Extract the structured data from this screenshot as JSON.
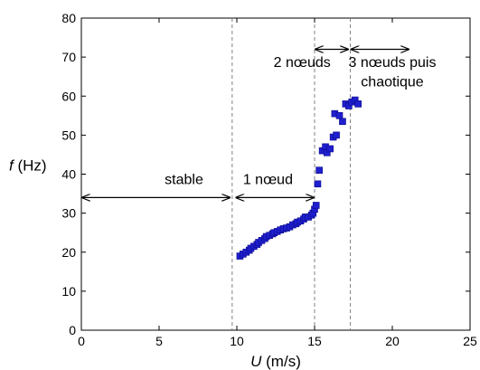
{
  "chart_data": {
    "type": "scatter",
    "xlabel": {
      "var": "U",
      "unit": " (m/s)"
    },
    "ylabel": {
      "var": "f",
      "unit": " (Hz)"
    },
    "xlim": [
      0,
      25
    ],
    "ylim": [
      0,
      80
    ],
    "xticks": [
      "0",
      "5",
      "10",
      "15",
      "20",
      "25"
    ],
    "yticks": [
      "0",
      "10",
      "20",
      "30",
      "40",
      "50",
      "60",
      "70",
      "80"
    ],
    "grid": false,
    "marker_color": "#1f1fcf",
    "series": [
      {
        "x": [
          10.2,
          10.4,
          10.6,
          10.8,
          10.9,
          11.1,
          11.3,
          11.4,
          11.6,
          11.8,
          11.9,
          12.1,
          12.3,
          12.4,
          12.6,
          12.8,
          13.0,
          13.2,
          13.4,
          13.6,
          13.8,
          13.9,
          14.1,
          14.3,
          14.4,
          14.6,
          14.8,
          14.9,
          15.0,
          15.1,
          15.2,
          15.3,
          15.5,
          15.7,
          15.8,
          16.0,
          16.2,
          16.3,
          16.4,
          16.6,
          16.8,
          17.0,
          17.2,
          17.4,
          17.6,
          17.8
        ],
        "y": [
          19,
          19.5,
          20,
          20.5,
          21,
          21.5,
          22,
          22.5,
          23,
          23.5,
          24,
          24.3,
          24.7,
          25,
          25.3,
          25.7,
          26,
          26.2,
          26.5,
          27,
          27.3,
          27.7,
          28,
          28.5,
          29,
          29,
          29.5,
          30,
          31,
          32,
          37.5,
          41,
          46,
          47,
          45.5,
          46.5,
          49.5,
          55.5,
          50,
          55,
          53.5,
          58,
          57.5,
          58.5,
          59,
          58
        ]
      }
    ],
    "vlines": [
      9.7,
      15.0,
      17.3
    ],
    "annotations": [
      {
        "text": "stable",
        "x": 6.6,
        "y": 37.5,
        "arrow_from": 0,
        "arrow_to": 9.6,
        "arrow_y": 34
      },
      {
        "text": "1 nœud",
        "x": 12.0,
        "y": 37.5,
        "arrow_from": 9.9,
        "arrow_to": 15.0,
        "arrow_y": 34
      },
      {
        "text": "2 nœuds",
        "x": 14.2,
        "y": 67.5,
        "arrow_from": 15.0,
        "arrow_to": 17.2,
        "arrow_y": 72
      },
      {
        "text": "3 nœuds puis",
        "x": 20.0,
        "y": 67.5,
        "arrow_from": 17.3,
        "arrow_to": 21.1,
        "arrow_y": 72
      },
      {
        "text": "chaotique",
        "x": 20.0,
        "y": 62.5
      }
    ]
  }
}
